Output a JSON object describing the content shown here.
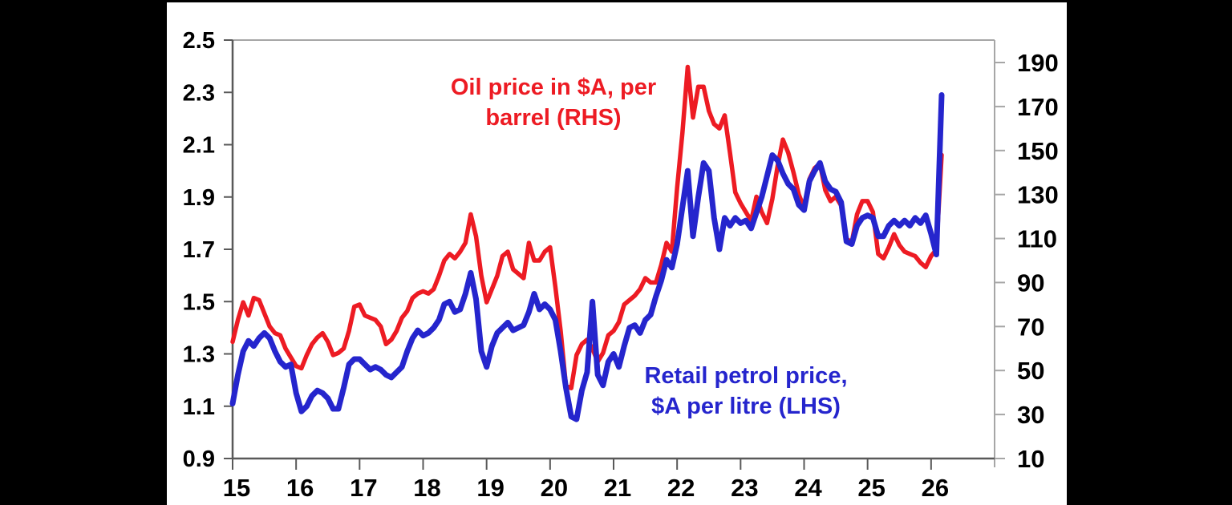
{
  "chart_data": {
    "type": "line",
    "frequency": "monthly",
    "x_start": "Jan 2015",
    "x_end": "Mar 2026",
    "x_tick_labels": [
      "15",
      "16",
      "17",
      "18",
      "19",
      "20",
      "21",
      "22",
      "23",
      "24",
      "25",
      "26"
    ],
    "left_axis": {
      "side": "left",
      "min": 0.9,
      "max": 2.5,
      "tick_values": [
        0.9,
        1.1,
        1.3,
        1.5,
        1.7,
        1.9,
        2.1,
        2.3,
        2.5
      ],
      "tick_labels": [
        "0.9",
        "1.1",
        "1.3",
        "1.5",
        "1.7",
        "1.9",
        "2.1",
        "2.3",
        "2.5"
      ]
    },
    "right_axis": {
      "side": "right",
      "min": 10,
      "max": 190,
      "tick_values": [
        10,
        30,
        50,
        70,
        90,
        110,
        130,
        150,
        170,
        190
      ],
      "tick_labels": [
        "10",
        "30",
        "50",
        "70",
        "90",
        "110",
        "130",
        "150",
        "170",
        "190"
      ]
    },
    "legend_position": "annotations-inside-plot",
    "grid": false,
    "series": [
      {
        "name": "Oil price in $A, per barrel (RHS)",
        "axis": "right",
        "color": "#ED1B23",
        "width": 5.5,
        "values": [
          63,
          73,
          81,
          75,
          83,
          82,
          76,
          70,
          67,
          66,
          60,
          56,
          52,
          51,
          57,
          62,
          65,
          67,
          63,
          57,
          58,
          60,
          68,
          79,
          80,
          75,
          74,
          73,
          70,
          62,
          64,
          68,
          74,
          77,
          83,
          85,
          86,
          85,
          87,
          93,
          100,
          103,
          101,
          104,
          108,
          121,
          111,
          93,
          81,
          87,
          93,
          102,
          104,
          96,
          94,
          92,
          108,
          100,
          100,
          104,
          106,
          88,
          68,
          43,
          42,
          57,
          62,
          64,
          60,
          54,
          58,
          66,
          68,
          72,
          80,
          82,
          84,
          87,
          92,
          90,
          90,
          98,
          108,
          104,
          133,
          158,
          188,
          165,
          179,
          179,
          168,
          162,
          160,
          166,
          149,
          131,
          126,
          122,
          118,
          129,
          122,
          117,
          128,
          143,
          155,
          149,
          140,
          130,
          124,
          137,
          142,
          144,
          132,
          127,
          129,
          125,
          110,
          108,
          121,
          127,
          127,
          122,
          103,
          101,
          106,
          112,
          107,
          104,
          103,
          102,
          99,
          97,
          102,
          105,
          148
        ]
      },
      {
        "name": "Retail petrol price, $A per litre (LHS)",
        "axis": "left",
        "color": "#2525CD",
        "width": 7,
        "values": [
          1.11,
          1.22,
          1.31,
          1.35,
          1.33,
          1.36,
          1.38,
          1.36,
          1.31,
          1.27,
          1.25,
          1.26,
          1.15,
          1.08,
          1.1,
          1.14,
          1.16,
          1.15,
          1.13,
          1.09,
          1.09,
          1.17,
          1.26,
          1.28,
          1.28,
          1.26,
          1.24,
          1.25,
          1.24,
          1.22,
          1.21,
          1.23,
          1.25,
          1.31,
          1.36,
          1.39,
          1.37,
          1.38,
          1.4,
          1.43,
          1.49,
          1.5,
          1.46,
          1.47,
          1.53,
          1.61,
          1.51,
          1.31,
          1.25,
          1.33,
          1.38,
          1.4,
          1.42,
          1.39,
          1.4,
          1.41,
          1.46,
          1.53,
          1.47,
          1.49,
          1.47,
          1.43,
          1.31,
          1.17,
          1.06,
          1.05,
          1.16,
          1.23,
          1.5,
          1.22,
          1.18,
          1.27,
          1.3,
          1.25,
          1.33,
          1.4,
          1.41,
          1.38,
          1.43,
          1.45,
          1.52,
          1.58,
          1.66,
          1.63,
          1.72,
          1.86,
          2.0,
          1.75,
          1.9,
          2.03,
          2.0,
          1.82,
          1.7,
          1.82,
          1.79,
          1.82,
          1.8,
          1.81,
          1.78,
          1.84,
          1.9,
          1.98,
          2.06,
          2.04,
          1.99,
          1.95,
          1.93,
          1.87,
          1.85,
          1.96,
          2.0,
          2.03,
          1.96,
          1.93,
          1.92,
          1.88,
          1.73,
          1.72,
          1.79,
          1.82,
          1.83,
          1.82,
          1.75,
          1.75,
          1.79,
          1.81,
          1.79,
          1.81,
          1.79,
          1.82,
          1.8,
          1.83,
          1.76,
          1.68,
          2.29
        ]
      }
    ]
  },
  "annotations": {
    "oil_label_line1": "Oil price in $A, per",
    "oil_label_line2": "barrel (RHS)",
    "petrol_label_line1": "Retail petrol price,",
    "petrol_label_line2": "$A per litre (LHS)"
  },
  "colors": {
    "background": "#000000",
    "panel": "#FFFFFF",
    "oil_line": "#ED1B23",
    "petrol_line": "#2525CD",
    "axis_dark": "#595959",
    "axis_light": "#A6A6A6",
    "tick_text": "#000000"
  }
}
